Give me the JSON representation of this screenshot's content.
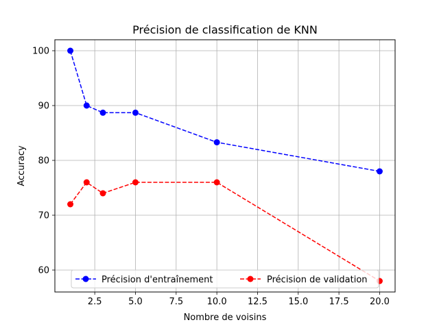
{
  "chart_data": {
    "type": "line",
    "title": "Précision de classification de KNN",
    "xlabel": "Nombre de voisins",
    "ylabel": "Accuracy",
    "xlim": [
      0.05,
      20.95
    ],
    "ylim": [
      56,
      102
    ],
    "xticks": [
      2.5,
      5.0,
      7.5,
      10.0,
      12.5,
      15.0,
      17.5,
      20.0
    ],
    "xtick_labels": [
      "2.5",
      "5.0",
      "7.5",
      "10.0",
      "12.5",
      "15.0",
      "17.5",
      "20.0"
    ],
    "yticks": [
      60,
      70,
      80,
      90,
      100
    ],
    "ytick_labels": [
      "60",
      "70",
      "80",
      "90",
      "100"
    ],
    "grid": true,
    "legend_position": "lower-center",
    "x": [
      1,
      2,
      3,
      5,
      10,
      20
    ],
    "series": [
      {
        "name": "Précision d'entraînement",
        "color": "#0000ff",
        "line_style": "dashed",
        "marker": "circle",
        "values": [
          100,
          90,
          88.7,
          88.7,
          83.3,
          78
        ]
      },
      {
        "name": "Précision de validation",
        "color": "#ff0000",
        "line_style": "dashed",
        "marker": "circle",
        "values": [
          72,
          76,
          74,
          76,
          76,
          58
        ]
      }
    ]
  }
}
